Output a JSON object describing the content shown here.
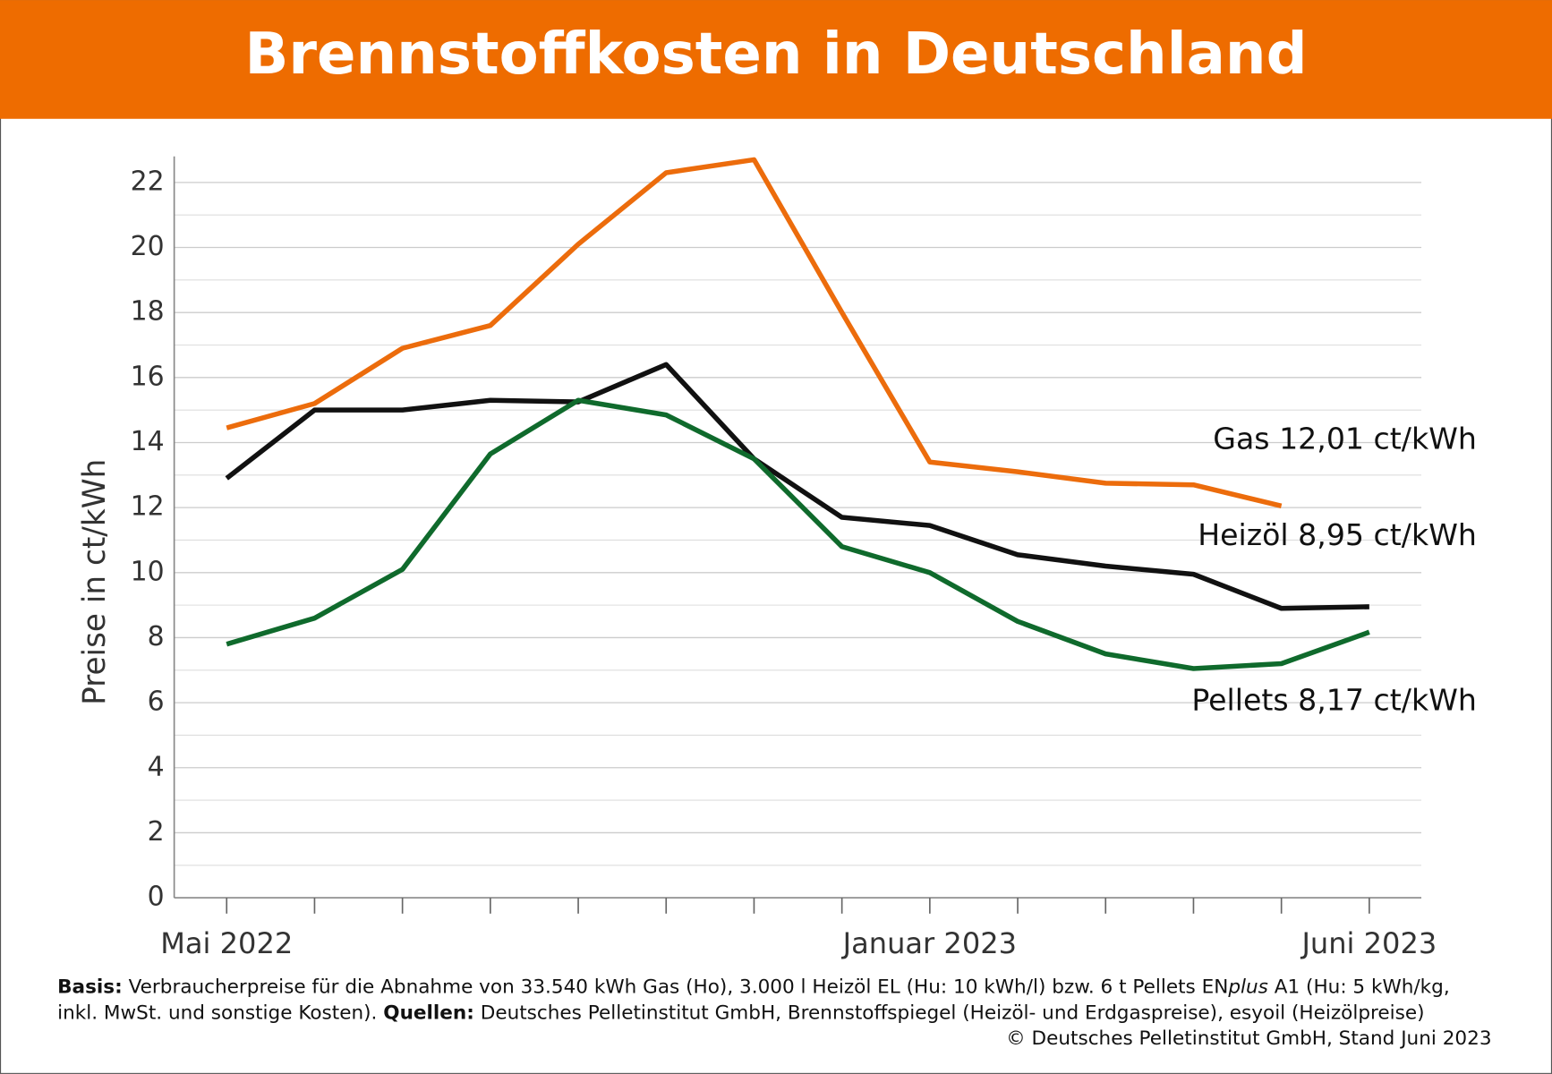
{
  "chart_data": {
    "type": "line",
    "title": "Brennstoffkosten in Deutschland",
    "y_label": "Preise in ct/kWh",
    "categories": [
      "Mai 2022",
      null,
      null,
      null,
      null,
      null,
      null,
      null,
      "Januar 2023",
      null,
      null,
      null,
      null,
      "Juni 2023"
    ],
    "ylim": [
      0,
      22.8
    ],
    "yticks": [
      0,
      2,
      4,
      6,
      8,
      10,
      12,
      14,
      16,
      18,
      20,
      22
    ],
    "grid": true,
    "series": [
      {
        "name": "Gas",
        "color": "#ec6c0c",
        "values": [
          14.45,
          15.2,
          16.9,
          17.6,
          20.1,
          22.3,
          22.7,
          18.0,
          13.4,
          13.1,
          12.75,
          12.7,
          12.05,
          null
        ]
      },
      {
        "name": "Heizöl",
        "color": "#111111",
        "values": [
          12.9,
          15.0,
          15.0,
          15.3,
          15.25,
          16.4,
          13.5,
          11.7,
          11.45,
          10.55,
          10.2,
          9.95,
          8.9,
          8.95
        ]
      },
      {
        "name": "Pellets",
        "color": "#0f6a2c",
        "values": [
          7.8,
          8.6,
          10.1,
          13.65,
          15.3,
          14.85,
          13.5,
          10.8,
          10.0,
          8.5,
          7.5,
          7.05,
          7.2,
          8.17
        ]
      }
    ],
    "annotations": [
      "Gas 12,01 ct/kWh",
      "Heizöl  8,95 ct/kWh",
      "Pellets  8,17 ct/kWh"
    ]
  },
  "footer": {
    "basis_label": "Basis:",
    "basis_text": " Verbraucherpreise für die Abnahme von 33.540 kWh Gas (Ho), 3.000 l Heizöl EL (Hu: 10 kWh/l) bzw. 6 t Pellets EN",
    "basis_italic": "plus",
    "basis_end": " A1 (Hu: 5 kWh/kg,",
    "line2_text": "inkl. MwSt. und sonstige Kosten). ",
    "sources_label": "Quellen:",
    "sources_text": " Deutsches Pelletinstitut GmbH, Brennstoffspiegel (Heizöl- und Erdgaspreise), esyoil (Heizölpreise)",
    "copyright": "© Deutsches Pelletinstitut GmbH, Stand Juni 2023"
  }
}
